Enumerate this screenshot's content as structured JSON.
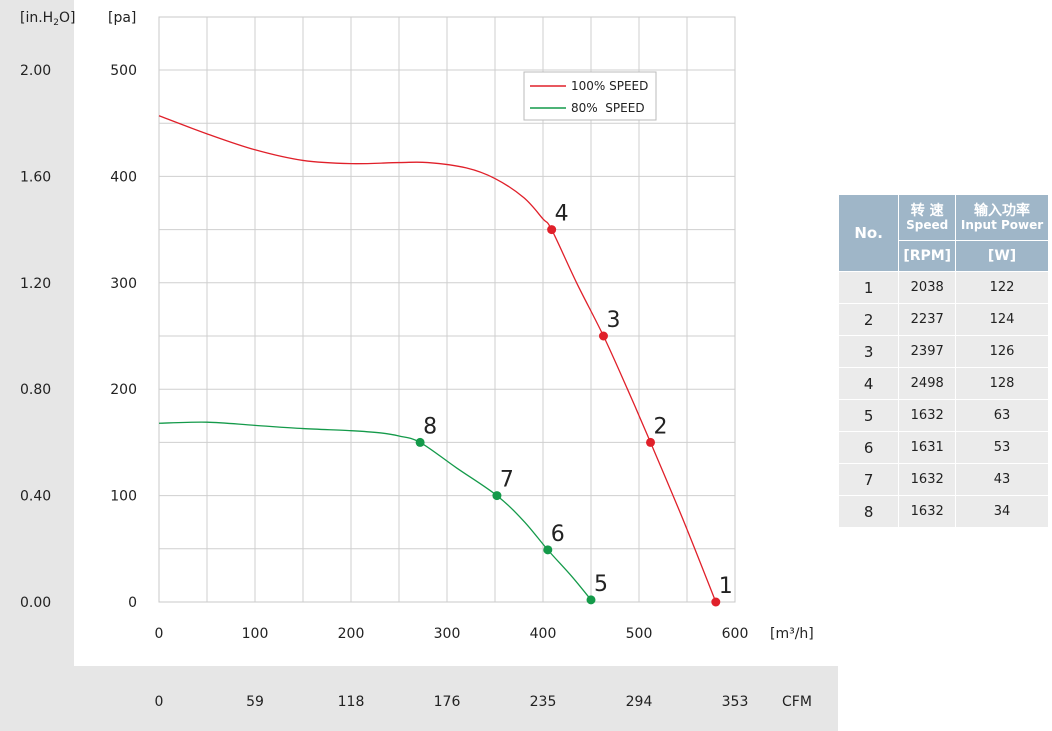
{
  "chart_data": {
    "type": "line",
    "ylabel": "[pa]",
    "ylabel_secondary": "[in.H2O]",
    "xlabel": "[m³/h]",
    "xlabel_secondary": "CFM",
    "xlim": [
      0,
      600
    ],
    "ylim": [
      0,
      500
    ],
    "x_ticks": [
      0,
      100,
      200,
      300,
      400,
      500,
      600
    ],
    "y_ticks": [
      0,
      100,
      200,
      300,
      400,
      500
    ],
    "y_secondary_ticks": [
      "0.00",
      "0.40",
      "0.80",
      "1.20",
      "1.60",
      "2.00"
    ],
    "x_secondary_ticks": [
      "0",
      "59",
      "118",
      "176",
      "235",
      "294",
      "353"
    ],
    "grid": true,
    "legend": "top-right",
    "series": [
      {
        "name": "100% SPEED",
        "color": "#e0202a",
        "curve": [
          [
            0,
            457
          ],
          [
            50,
            440
          ],
          [
            100,
            425
          ],
          [
            150,
            415
          ],
          [
            200,
            412
          ],
          [
            250,
            413
          ],
          [
            280,
            413
          ],
          [
            320,
            408
          ],
          [
            350,
            398
          ],
          [
            380,
            380
          ],
          [
            400,
            360
          ],
          [
            409,
            350
          ],
          [
            435,
            300
          ],
          [
            463,
            250
          ],
          [
            488,
            200
          ],
          [
            512,
            150
          ],
          [
            547,
            75
          ],
          [
            580,
            0
          ]
        ],
        "points": [
          {
            "label": "1",
            "x": 580,
            "y": 0
          },
          {
            "label": "2",
            "x": 512,
            "y": 150
          },
          {
            "label": "3",
            "x": 463,
            "y": 250
          },
          {
            "label": "4",
            "x": 409,
            "y": 350
          }
        ]
      },
      {
        "name": "80%  SPEED",
        "color": "#149a4a",
        "curve": [
          [
            0,
            168
          ],
          [
            50,
            169
          ],
          [
            100,
            166
          ],
          [
            150,
            163
          ],
          [
            200,
            161
          ],
          [
            230,
            159
          ],
          [
            250,
            156
          ],
          [
            272,
            150
          ],
          [
            310,
            126
          ],
          [
            352,
            100
          ],
          [
            380,
            76
          ],
          [
            405,
            49
          ],
          [
            430,
            24
          ],
          [
            450,
            2
          ]
        ],
        "points": [
          {
            "label": "5",
            "x": 450,
            "y": 2
          },
          {
            "label": "6",
            "x": 405,
            "y": 49
          },
          {
            "label": "7",
            "x": 352,
            "y": 100
          },
          {
            "label": "8",
            "x": 272,
            "y": 150
          }
        ]
      }
    ]
  },
  "spec_table": {
    "headers": {
      "no": "No.",
      "speed_cn": "转 速",
      "speed_en": "Speed",
      "power_cn": "输入功率",
      "power_en": "Input Power",
      "speed_unit": "[RPM]",
      "power_unit": "[W]"
    },
    "rows": [
      {
        "no": "1",
        "speed": "2038",
        "power": "122"
      },
      {
        "no": "2",
        "speed": "2237",
        "power": "124"
      },
      {
        "no": "3",
        "speed": "2397",
        "power": "126"
      },
      {
        "no": "4",
        "speed": "2498",
        "power": "128"
      },
      {
        "no": "5",
        "speed": "1632",
        "power": "63"
      },
      {
        "no": "6",
        "speed": "1631",
        "power": "53"
      },
      {
        "no": "7",
        "speed": "1632",
        "power": "43"
      },
      {
        "no": "8",
        "speed": "1632",
        "power": "34"
      }
    ]
  }
}
